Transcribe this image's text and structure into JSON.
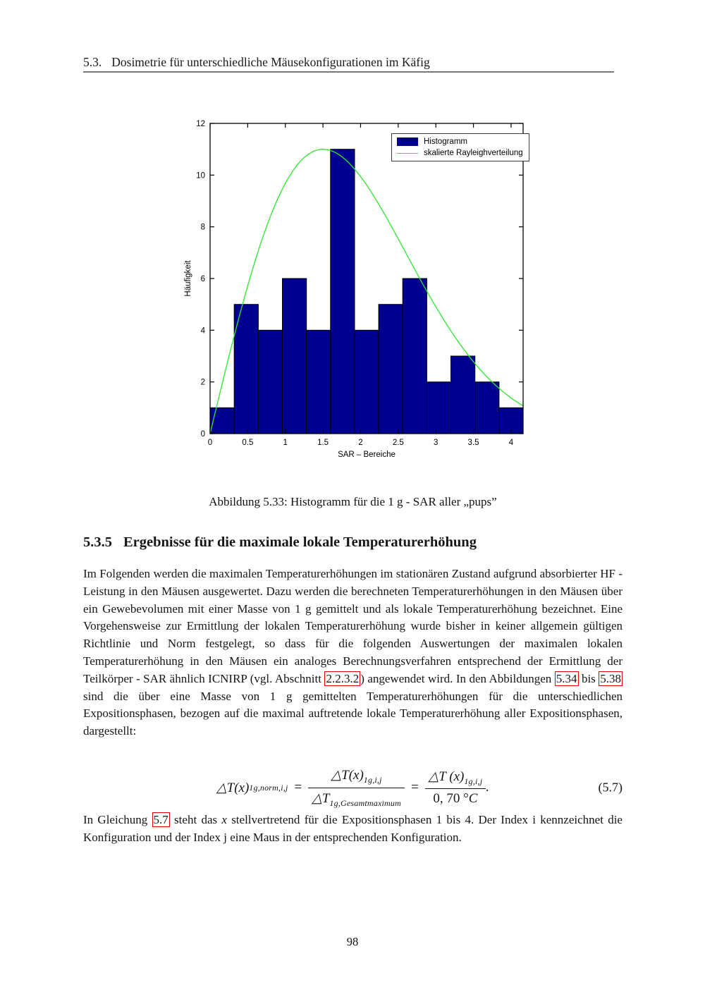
{
  "header": {
    "number": "5.3.",
    "title": "Dosimetrie für unterschiedliche Mäusekonfigurationen im Käfig"
  },
  "figure_caption": "Abbildung 5.33: Histogramm für die 1 g - SAR aller „pups”",
  "chart_data": {
    "type": "bar",
    "title": "",
    "xlabel": "SAR – Bereiche",
    "ylabel": "Häufigkeit",
    "xlim": [
      0,
      4.16
    ],
    "ylim": [
      0,
      12
    ],
    "xticks": [
      0,
      0.5,
      1,
      1.5,
      2,
      2.5,
      3,
      3.5,
      4
    ],
    "yticks": [
      0,
      2,
      4,
      6,
      8,
      10,
      12
    ],
    "bins": {
      "start": 0,
      "width": 0.32
    },
    "values": [
      1,
      5,
      4,
      6,
      4,
      11,
      4,
      5,
      6,
      2,
      3,
      2,
      1
    ],
    "bar_color": "#00008f",
    "bar_edge_color": "#000000",
    "curve": {
      "label": "skalierte Rayleighverteilung",
      "shape": "rayleigh",
      "sigma": 1.5,
      "peak": 11,
      "color": "#2ee62e"
    },
    "legend": [
      {
        "label": "Histogramm",
        "swatch": "bar"
      },
      {
        "label": "skalierte Rayleighverteilung",
        "swatch": "line"
      }
    ],
    "legend_position": "upper right",
    "grid": false
  },
  "section_heading": {
    "number": "5.3.5",
    "title": "Ergebnisse für die maximale lokale Temperaturerhöhung"
  },
  "paragraph1": {
    "segments": [
      {
        "t": "Im Folgenden werden die maximalen Temperaturerhöhungen im stationären Zustand aufgrund absorbierter HF - Leistung in den Mäusen ausgewertet. Dazu werden die berechneten Temperaturerhöhungen in den Mäusen über ein Gewebevolumen mit einer Masse von 1 g gemittelt und als lokale Temperaturerhöhung bezeichnet. Eine Vorgehensweise zur Ermittlung der lokalen Temperaturerhöhung wurde bisher in keiner allgemein gültigen Richtlinie und Norm festgelegt, so dass für die folgenden Auswertungen der maximalen lokalen Temperaturerhöhung in den Mäusen ein analoges Berechnungsverfahren entsprechend der Ermittlung der Teilkörper - SAR ähnlich ICNIRP (vgl. Abschnitt "
      },
      {
        "link": "2.2.3.2"
      },
      {
        "t": ") angewendet wird. In den Abbildungen "
      },
      {
        "link": "5.34"
      },
      {
        "t": " bis "
      },
      {
        "link": "5.38"
      },
      {
        "t": " sind die über eine Masse von 1 g gemittelten Temperaturerhöhungen für die unterschiedlichen Expositionsphasen, bezogen auf die maximal auftretende lokale Temperaturerhöhung aller Expositionsphasen, dargestellt:"
      }
    ]
  },
  "equation": {
    "lhs": "△T(x)",
    "lhs_sub": "1g,norm,i,j",
    "rel1": "=",
    "frac1_num": "△T(x)",
    "frac1_num_sub": "1g,i,j",
    "frac1_den": "△T",
    "frac1_den_sub": "1g,Gesamtmaximum",
    "rel2": "=",
    "frac2_num": "△T (x)",
    "frac2_num_sub": "1g,i,j",
    "frac2_den_pre": "0, 70 °",
    "frac2_den_it": "C",
    "period": ".",
    "tag": "(5.7)"
  },
  "paragraph2": {
    "segments": [
      {
        "t": "In Gleichung "
      },
      {
        "link": "5.7"
      },
      {
        "t": " steht das "
      },
      {
        "i": "x"
      },
      {
        "t": " stellvertretend für die Expositionsphasen 1 bis 4. Der Index i kennzeichnet die Konfiguration und der Index j eine Maus in der entsprechenden Konfiguration."
      }
    ]
  },
  "page_number": "98"
}
